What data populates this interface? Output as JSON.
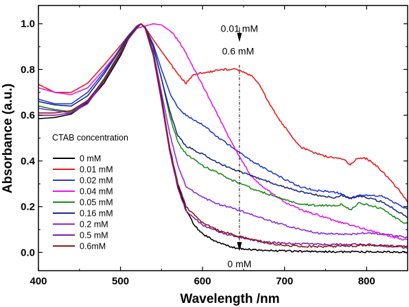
{
  "chart_data": {
    "type": "line",
    "xlabel": "Wavelength /nm",
    "ylabel": "Absorbance (a.u.)",
    "xlim": [
      400,
      850
    ],
    "ylim": [
      -0.08,
      1.08
    ],
    "xticks": [
      400,
      500,
      600,
      700,
      800
    ],
    "yticks": [
      "0.0",
      "0.2",
      "0.4",
      "0.6",
      "0.8",
      "1.0"
    ],
    "legend_title": "CTAB concentration",
    "legend_position": "lower-left",
    "grid": false,
    "annotations": {
      "top_upper": "0.01 mM",
      "top_lower": "0.6 mM",
      "bottom": "0 mM",
      "marker_x": 645
    },
    "series": [
      {
        "name": "0 mM",
        "color": "#000000",
        "points": [
          [
            400,
            0.585
          ],
          [
            420,
            0.59
          ],
          [
            440,
            0.605
          ],
          [
            460,
            0.655
          ],
          [
            480,
            0.74
          ],
          [
            500,
            0.86
          ],
          [
            510,
            0.935
          ],
          [
            520,
            0.99
          ],
          [
            525,
            1.0
          ],
          [
            530,
            0.985
          ],
          [
            540,
            0.88
          ],
          [
            550,
            0.68
          ],
          [
            560,
            0.45
          ],
          [
            570,
            0.29
          ],
          [
            580,
            0.185
          ],
          [
            590,
            0.12
          ],
          [
            600,
            0.08
          ],
          [
            620,
            0.04
          ],
          [
            640,
            0.02
          ],
          [
            660,
            0.012
          ],
          [
            700,
            0.006
          ],
          [
            750,
            0.003
          ],
          [
            800,
            0.002
          ],
          [
            850,
            0.001
          ]
        ]
      },
      {
        "name": "0.01 mM",
        "color": "#e41a1c",
        "points": [
          [
            400,
            0.735
          ],
          [
            420,
            0.7
          ],
          [
            440,
            0.7
          ],
          [
            460,
            0.74
          ],
          [
            480,
            0.82
          ],
          [
            500,
            0.905
          ],
          [
            510,
            0.95
          ],
          [
            520,
            0.99
          ],
          [
            525,
            1.0
          ],
          [
            530,
            0.985
          ],
          [
            540,
            0.93
          ],
          [
            550,
            0.88
          ],
          [
            560,
            0.83
          ],
          [
            570,
            0.78
          ],
          [
            580,
            0.74
          ],
          [
            590,
            0.78
          ],
          [
            600,
            0.785
          ],
          [
            610,
            0.79
          ],
          [
            620,
            0.8
          ],
          [
            630,
            0.8
          ],
          [
            640,
            0.8
          ],
          [
            650,
            0.79
          ],
          [
            660,
            0.77
          ],
          [
            670,
            0.73
          ],
          [
            680,
            0.66
          ],
          [
            690,
            0.6
          ],
          [
            700,
            0.55
          ],
          [
            710,
            0.5
          ],
          [
            720,
            0.46
          ],
          [
            730,
            0.445
          ],
          [
            750,
            0.42
          ],
          [
            770,
            0.41
          ],
          [
            780,
            0.385
          ],
          [
            790,
            0.415
          ],
          [
            800,
            0.41
          ],
          [
            810,
            0.385
          ],
          [
            820,
            0.35
          ],
          [
            830,
            0.31
          ],
          [
            840,
            0.27
          ],
          [
            850,
            0.22
          ]
        ]
      },
      {
        "name": "0.02 mM",
        "color": "#1f3bd1",
        "points": [
          [
            400,
            0.67
          ],
          [
            420,
            0.65
          ],
          [
            440,
            0.65
          ],
          [
            460,
            0.7
          ],
          [
            480,
            0.79
          ],
          [
            500,
            0.895
          ],
          [
            510,
            0.95
          ],
          [
            520,
            0.99
          ],
          [
            525,
            1.0
          ],
          [
            530,
            0.985
          ],
          [
            540,
            0.91
          ],
          [
            550,
            0.8
          ],
          [
            560,
            0.7
          ],
          [
            570,
            0.63
          ],
          [
            580,
            0.6
          ],
          [
            600,
            0.56
          ],
          [
            620,
            0.5
          ],
          [
            640,
            0.45
          ],
          [
            660,
            0.4
          ],
          [
            680,
            0.36
          ],
          [
            700,
            0.32
          ],
          [
            720,
            0.285
          ],
          [
            740,
            0.27
          ],
          [
            760,
            0.265
          ],
          [
            770,
            0.255
          ],
          [
            780,
            0.235
          ],
          [
            790,
            0.25
          ],
          [
            800,
            0.25
          ],
          [
            820,
            0.245
          ],
          [
            840,
            0.205
          ],
          [
            850,
            0.19
          ]
        ]
      },
      {
        "name": "0.04 mM",
        "color": "#e815e8",
        "points": [
          [
            400,
            0.72
          ],
          [
            420,
            0.7
          ],
          [
            440,
            0.69
          ],
          [
            460,
            0.72
          ],
          [
            480,
            0.8
          ],
          [
            500,
            0.89
          ],
          [
            510,
            0.94
          ],
          [
            520,
            0.98
          ],
          [
            530,
            0.99
          ],
          [
            540,
            1.0
          ],
          [
            550,
            0.995
          ],
          [
            560,
            0.97
          ],
          [
            570,
            0.93
          ],
          [
            580,
            0.87
          ],
          [
            590,
            0.8
          ],
          [
            600,
            0.73
          ],
          [
            610,
            0.66
          ],
          [
            620,
            0.59
          ],
          [
            630,
            0.52
          ],
          [
            640,
            0.45
          ],
          [
            650,
            0.39
          ],
          [
            660,
            0.33
          ],
          [
            680,
            0.27
          ],
          [
            700,
            0.22
          ],
          [
            720,
            0.185
          ],
          [
            740,
            0.165
          ],
          [
            760,
            0.14
          ],
          [
            780,
            0.12
          ],
          [
            800,
            0.1
          ],
          [
            820,
            0.08
          ],
          [
            840,
            0.06
          ],
          [
            850,
            0.055
          ]
        ]
      },
      {
        "name": "0.05 mM",
        "color": "#1a8c1a",
        "points": [
          [
            400,
            0.64
          ],
          [
            420,
            0.625
          ],
          [
            440,
            0.615
          ],
          [
            460,
            0.66
          ],
          [
            480,
            0.76
          ],
          [
            500,
            0.88
          ],
          [
            510,
            0.945
          ],
          [
            520,
            0.985
          ],
          [
            525,
            1.0
          ],
          [
            530,
            0.985
          ],
          [
            540,
            0.9
          ],
          [
            550,
            0.76
          ],
          [
            560,
            0.6
          ],
          [
            570,
            0.48
          ],
          [
            580,
            0.43
          ],
          [
            600,
            0.38
          ],
          [
            620,
            0.345
          ],
          [
            640,
            0.31
          ],
          [
            660,
            0.28
          ],
          [
            680,
            0.255
          ],
          [
            700,
            0.23
          ],
          [
            720,
            0.21
          ],
          [
            740,
            0.205
          ],
          [
            760,
            0.205
          ],
          [
            770,
            0.21
          ],
          [
            780,
            0.185
          ],
          [
            790,
            0.215
          ],
          [
            800,
            0.21
          ],
          [
            820,
            0.19
          ],
          [
            840,
            0.14
          ],
          [
            850,
            0.125
          ]
        ]
      },
      {
        "name": "0.16 mM",
        "color": "#1a2a80",
        "points": [
          [
            400,
            0.66
          ],
          [
            420,
            0.645
          ],
          [
            440,
            0.64
          ],
          [
            460,
            0.685
          ],
          [
            480,
            0.78
          ],
          [
            500,
            0.89
          ],
          [
            510,
            0.945
          ],
          [
            520,
            0.985
          ],
          [
            525,
            1.0
          ],
          [
            530,
            0.985
          ],
          [
            540,
            0.9
          ],
          [
            550,
            0.76
          ],
          [
            560,
            0.62
          ],
          [
            570,
            0.51
          ],
          [
            580,
            0.465
          ],
          [
            600,
            0.43
          ],
          [
            620,
            0.39
          ],
          [
            640,
            0.36
          ],
          [
            660,
            0.335
          ],
          [
            680,
            0.31
          ],
          [
            700,
            0.285
          ],
          [
            720,
            0.265
          ],
          [
            740,
            0.25
          ],
          [
            760,
            0.24
          ],
          [
            770,
            0.25
          ],
          [
            780,
            0.235
          ],
          [
            790,
            0.245
          ],
          [
            800,
            0.24
          ],
          [
            820,
            0.22
          ],
          [
            840,
            0.175
          ],
          [
            850,
            0.155
          ]
        ]
      },
      {
        "name": "0.2 mM",
        "color": "#8a2be2",
        "points": [
          [
            400,
            0.63
          ],
          [
            420,
            0.62
          ],
          [
            440,
            0.61
          ],
          [
            460,
            0.65
          ],
          [
            480,
            0.75
          ],
          [
            500,
            0.87
          ],
          [
            510,
            0.935
          ],
          [
            520,
            0.98
          ],
          [
            525,
            1.0
          ],
          [
            530,
            0.98
          ],
          [
            540,
            0.88
          ],
          [
            550,
            0.7
          ],
          [
            560,
            0.52
          ],
          [
            570,
            0.38
          ],
          [
            580,
            0.29
          ],
          [
            600,
            0.24
          ],
          [
            620,
            0.21
          ],
          [
            640,
            0.19
          ],
          [
            660,
            0.165
          ],
          [
            680,
            0.14
          ],
          [
            700,
            0.12
          ],
          [
            720,
            0.1
          ],
          [
            740,
            0.085
          ],
          [
            760,
            0.08
          ],
          [
            780,
            0.08
          ],
          [
            800,
            0.085
          ],
          [
            820,
            0.08
          ],
          [
            840,
            0.07
          ],
          [
            850,
            0.065
          ]
        ]
      },
      {
        "name": "0.5 mM",
        "color": "#7b1fa2",
        "points": [
          [
            400,
            0.6
          ],
          [
            420,
            0.6
          ],
          [
            440,
            0.61
          ],
          [
            460,
            0.66
          ],
          [
            480,
            0.75
          ],
          [
            500,
            0.87
          ],
          [
            510,
            0.935
          ],
          [
            520,
            0.98
          ],
          [
            525,
            1.0
          ],
          [
            530,
            0.98
          ],
          [
            540,
            0.86
          ],
          [
            550,
            0.66
          ],
          [
            560,
            0.44
          ],
          [
            570,
            0.28
          ],
          [
            580,
            0.18
          ],
          [
            600,
            0.12
          ],
          [
            620,
            0.09
          ],
          [
            640,
            0.07
          ],
          [
            660,
            0.055
          ],
          [
            680,
            0.045
          ],
          [
            700,
            0.04
          ],
          [
            740,
            0.035
          ],
          [
            780,
            0.035
          ],
          [
            800,
            0.035
          ],
          [
            820,
            0.03
          ],
          [
            850,
            0.02
          ]
        ]
      },
      {
        "name": "0.6mM",
        "color": "#8b1a1a",
        "points": [
          [
            400,
            0.61
          ],
          [
            420,
            0.61
          ],
          [
            440,
            0.62
          ],
          [
            460,
            0.665
          ],
          [
            480,
            0.755
          ],
          [
            500,
            0.875
          ],
          [
            510,
            0.94
          ],
          [
            520,
            0.985
          ],
          [
            525,
            1.0
          ],
          [
            530,
            0.985
          ],
          [
            540,
            0.87
          ],
          [
            550,
            0.67
          ],
          [
            560,
            0.46
          ],
          [
            570,
            0.3
          ],
          [
            580,
            0.2
          ],
          [
            600,
            0.13
          ],
          [
            620,
            0.095
          ],
          [
            640,
            0.075
          ],
          [
            660,
            0.055
          ],
          [
            680,
            0.04
          ],
          [
            700,
            0.03
          ],
          [
            740,
            0.025
          ],
          [
            780,
            0.028
          ],
          [
            800,
            0.032
          ],
          [
            820,
            0.03
          ],
          [
            850,
            0.025
          ]
        ]
      }
    ]
  }
}
